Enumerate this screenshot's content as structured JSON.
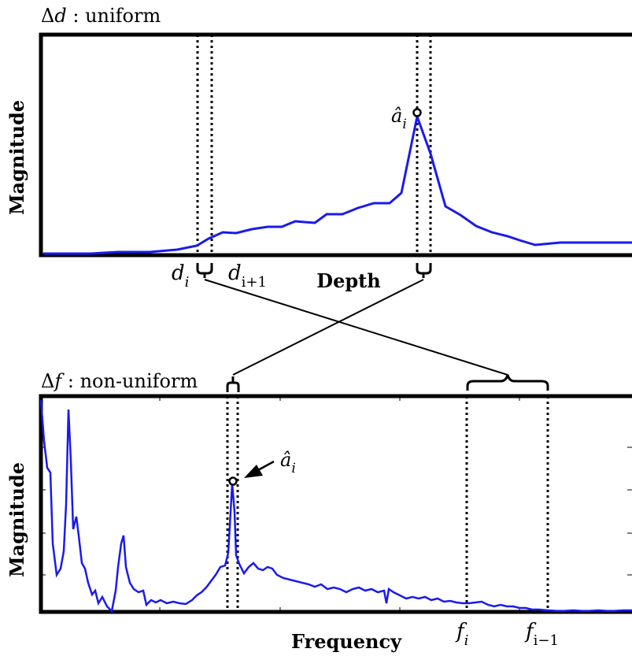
{
  "top_panel": {
    "title_delta": "Δ",
    "title_var": "d",
    "title_rest": " : uniform",
    "ylabel": "Magnitude",
    "xlabel": "Depth",
    "peak_label_base": "â",
    "peak_label_sub": "i",
    "tick_di_base": "d",
    "tick_di_sub": "i",
    "tick_di1_base": "d",
    "tick_di1_sub": "i+1"
  },
  "bottom_panel": {
    "title_delta": "Δ",
    "title_var": "f",
    "title_rest": " : non-uniform",
    "ylabel": "Magnitude",
    "xlabel": "Frequency",
    "peak_label_base": "â",
    "peak_label_sub": "i",
    "tick_fi_base": "f",
    "tick_fi_sub": "i",
    "tick_fi1_base": "f",
    "tick_fi1_sub": "i−1"
  },
  "colors": {
    "curve": "#1a1aee",
    "frame": "#000000"
  }
}
